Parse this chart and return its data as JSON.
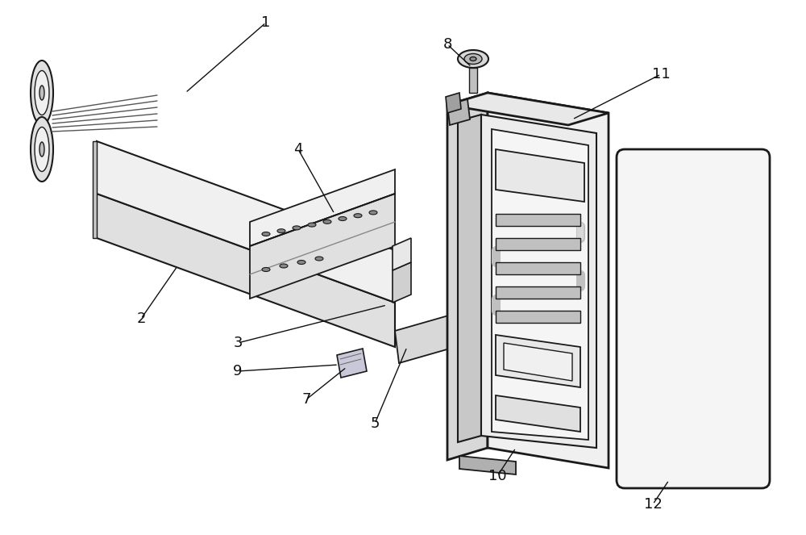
{
  "background_color": "#ffffff",
  "line_color": "#1a1a1a",
  "fill_light": "#e8e8e8",
  "fill_mid": "#d0d0d0",
  "fill_dark": "#b8b8b8",
  "fill_white": "#f8f8f8",
  "fill_inner": "#f0f0f0"
}
